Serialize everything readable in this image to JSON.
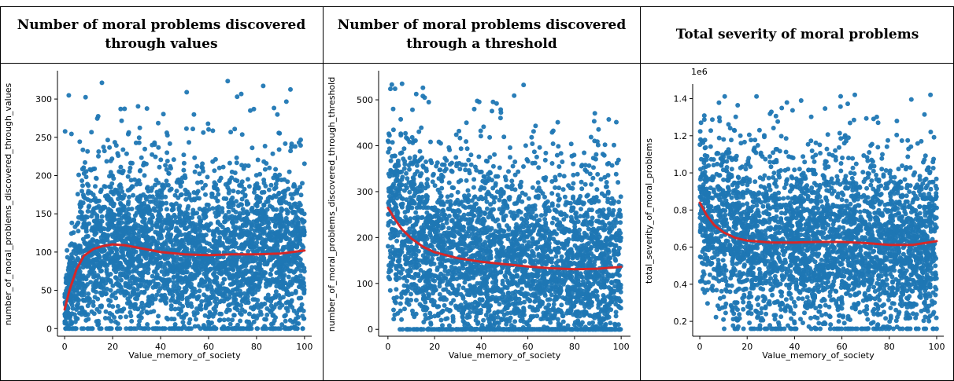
{
  "colors": {
    "points": "#1f77b4",
    "fit_line": "#d62728",
    "axis": "#000000",
    "border": "#000000"
  },
  "chart_data": [
    {
      "type": "scatter",
      "title": "Number of moral problems discovered through values",
      "xlabel": "Value_memory_of_society",
      "ylabel": "number_of_moral_problems_discovered_through_values",
      "xlim": [
        -3,
        103
      ],
      "ylim": [
        -10,
        335
      ],
      "xticks": [
        0,
        20,
        40,
        60,
        80,
        100
      ],
      "yticks": [
        0,
        50,
        100,
        150,
        200,
        250,
        300
      ],
      "ytick_labels": [
        "0",
        "50",
        "100",
        "150",
        "200",
        "250",
        "300"
      ],
      "scale_note": "",
      "grid": false,
      "point_cloud": {
        "x_min": 0,
        "x_max": 100,
        "y_min": 0,
        "y_max": 325,
        "typical_low": 20,
        "typical_high": 200,
        "center": 95
      },
      "fit_line": {
        "x": [
          0,
          2,
          5,
          8,
          12,
          16,
          20,
          25,
          30,
          40,
          50,
          60,
          70,
          80,
          90,
          100
        ],
        "y": [
          25,
          50,
          78,
          95,
          104,
          108,
          110,
          109,
          106,
          100,
          97,
          96,
          97,
          97,
          98,
          102
        ]
      }
    },
    {
      "type": "scatter",
      "title": "Number of moral problems discovered through a threshold",
      "xlabel": "Value_memory_of_society",
      "ylabel": "number_of_moral_problems_discovered_through_threshold",
      "xlim": [
        -4,
        104
      ],
      "ylim": [
        -15,
        560
      ],
      "xticks": [
        0,
        20,
        40,
        60,
        80,
        100
      ],
      "yticks": [
        0,
        100,
        200,
        300,
        400,
        500
      ],
      "ytick_labels": [
        "0",
        "100",
        "200",
        "300",
        "400",
        "500"
      ],
      "scale_note": "",
      "grid": false,
      "point_cloud": {
        "x_min": 0,
        "x_max": 100,
        "y_min": 0,
        "y_max": 535,
        "typical_low": 20,
        "typical_high": 360,
        "center": 150
      },
      "fit_line": {
        "x": [
          0,
          3,
          6,
          10,
          15,
          20,
          30,
          40,
          50,
          60,
          70,
          80,
          90,
          100
        ],
        "y": [
          265,
          240,
          218,
          198,
          180,
          168,
          155,
          147,
          142,
          137,
          133,
          131,
          132,
          136
        ]
      }
    },
    {
      "type": "scatter",
      "title": "Total severity of moral problems",
      "xlabel": "Value_memory_of_society",
      "ylabel": "total_severity_of_moral_problems",
      "xlim": [
        -3,
        103
      ],
      "ylim": [
        0.12,
        1.47
      ],
      "xticks": [
        0,
        20,
        40,
        60,
        80,
        100
      ],
      "yticks": [
        0.2,
        0.4,
        0.6,
        0.8,
        1.0,
        1.2,
        1.4
      ],
      "ytick_labels": [
        "0.2",
        "0.4",
        "0.6",
        "0.8",
        "1.0",
        "1.2",
        "1.4"
      ],
      "scale_note": "1e6",
      "grid": false,
      "point_cloud": {
        "x_min": 0,
        "x_max": 100,
        "y_min": 0.16,
        "y_max": 1.42,
        "typical_low": 0.3,
        "typical_high": 1.05,
        "center": 0.65
      },
      "fit_line": {
        "x": [
          0,
          3,
          6,
          10,
          15,
          20,
          30,
          40,
          50,
          60,
          70,
          80,
          90,
          100
        ],
        "y": [
          0.84,
          0.77,
          0.72,
          0.68,
          0.65,
          0.635,
          0.625,
          0.625,
          0.628,
          0.628,
          0.622,
          0.612,
          0.612,
          0.632
        ]
      }
    }
  ]
}
